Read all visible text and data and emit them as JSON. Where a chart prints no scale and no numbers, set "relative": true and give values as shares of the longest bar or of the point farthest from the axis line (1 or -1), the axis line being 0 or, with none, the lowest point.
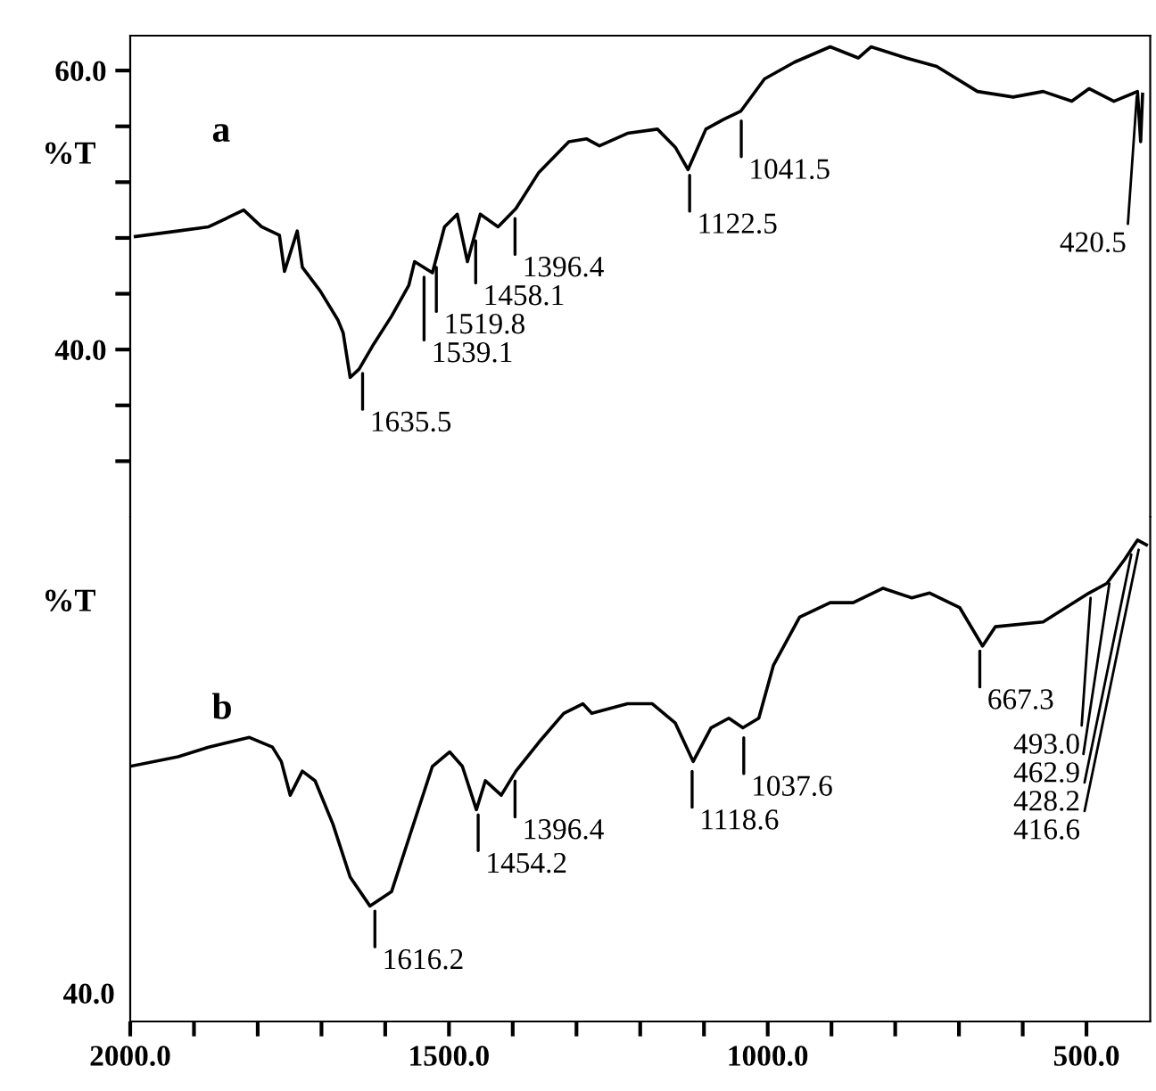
{
  "chart_data": [
    {
      "type": "line",
      "ylabel": "%T",
      "xlim": [
        2000,
        400
      ],
      "ylim": [
        28,
        62.5
      ],
      "yticks": [
        {
          "value": 60,
          "label": "60.0"
        },
        {
          "value": 56,
          "label": null
        },
        {
          "value": 52,
          "label": null
        },
        {
          "value": 48,
          "label": null
        },
        {
          "value": 44,
          "label": null
        },
        {
          "value": 40,
          "label": "40.0"
        },
        {
          "value": 36,
          "label": null
        },
        {
          "value": 32,
          "label": null
        }
      ],
      "tick_labels": "y",
      "series": [
        {
          "name": "a",
          "color": "#000000",
          "x": [
            1992,
            1925,
            1877,
            1822,
            1794,
            1766,
            1758,
            1738,
            1730,
            1702,
            1674,
            1666,
            1655,
            1641,
            1618,
            1590,
            1563,
            1554,
            1526,
            1507,
            1487,
            1471,
            1451,
            1423,
            1395,
            1359,
            1331,
            1312,
            1284,
            1264,
            1220,
            1173,
            1145,
            1125,
            1097,
            1069,
            1042,
            1005,
            958,
            902,
            858,
            838,
            783,
            735,
            671,
            615,
            568,
            523,
            496,
            457,
            420,
            415,
            412
          ],
          "values": [
            48.1,
            48.5,
            48.8,
            50.0,
            48.8,
            48.2,
            45.6,
            48.5,
            45.9,
            44.2,
            42.1,
            41.2,
            38.0,
            38.6,
            40.4,
            42.4,
            44.6,
            46.3,
            45.5,
            48.8,
            49.7,
            46.3,
            49.7,
            48.8,
            50.1,
            52.7,
            54.0,
            54.9,
            55.1,
            54.6,
            55.5,
            55.8,
            54.5,
            52.9,
            55.8,
            56.5,
            57.1,
            59.4,
            60.6,
            61.7,
            60.9,
            61.7,
            60.9,
            60.3,
            58.5,
            58.1,
            58.5,
            57.8,
            58.7,
            57.8,
            58.5,
            54.9,
            58.3
          ]
        }
      ],
      "annotations": [
        {
          "text": "1635.5",
          "x": 1635.5,
          "y": 39.0
        },
        {
          "text": "1539.1",
          "x": 1539.1,
          "y": 45.9
        },
        {
          "text": "1519.8",
          "x": 1519.8,
          "y": 46.6
        },
        {
          "text": "1458.1",
          "x": 1458.1,
          "y": 48.5
        },
        {
          "text": "1396.4",
          "x": 1396.4,
          "y": 50.1
        },
        {
          "text": "1122.5",
          "x": 1122.5,
          "y": 53.2
        },
        {
          "text": "1041.5",
          "x": 1041.5,
          "y": 57.1
        },
        {
          "text": "420.5",
          "x": 420.5,
          "y": 58.5
        }
      ]
    },
    {
      "type": "line",
      "ylabel": "%T",
      "relative": true,
      "xlim": [
        2000,
        400
      ],
      "xticks": [
        {
          "value": 2000,
          "label": "2000.0"
        },
        {
          "value": 1900,
          "label": null
        },
        {
          "value": 1800,
          "label": null
        },
        {
          "value": 1700,
          "label": null
        },
        {
          "value": 1600,
          "label": null
        },
        {
          "value": 1500,
          "label": "1500.0"
        },
        {
          "value": 1400,
          "label": null
        },
        {
          "value": 1300,
          "label": null
        },
        {
          "value": 1200,
          "label": null
        },
        {
          "value": 1100,
          "label": null
        },
        {
          "value": 1000,
          "label": "1000.0"
        },
        {
          "value": 900,
          "label": null
        },
        {
          "value": 800,
          "label": null
        },
        {
          "value": 700,
          "label": null
        },
        {
          "value": 600,
          "label": null
        },
        {
          "value": 500,
          "label": "500.0"
        }
      ],
      "series": [
        {
          "name": "b",
          "color": "#000000",
          "x": [
            2000,
            1925,
            1877,
            1813,
            1777,
            1763,
            1749,
            1730,
            1710,
            1682,
            1655,
            1624,
            1590,
            1563,
            1526,
            1499,
            1479,
            1457,
            1443,
            1418,
            1395,
            1359,
            1320,
            1290,
            1276,
            1220,
            1181,
            1145,
            1117,
            1089,
            1061,
            1039,
            1014,
            991,
            950,
            902,
            866,
            819,
            774,
            746,
            699,
            663,
            643,
            568,
            532,
            496,
            468,
            440,
            420,
            406
          ],
          "values": [
            0.53,
            0.55,
            0.57,
            0.59,
            0.57,
            0.54,
            0.47,
            0.52,
            0.5,
            0.41,
            0.3,
            0.24,
            0.27,
            0.38,
            0.53,
            0.56,
            0.53,
            0.44,
            0.5,
            0.47,
            0.52,
            0.58,
            0.64,
            0.66,
            0.64,
            0.66,
            0.66,
            0.62,
            0.54,
            0.61,
            0.63,
            0.61,
            0.63,
            0.74,
            0.84,
            0.87,
            0.87,
            0.9,
            0.88,
            0.89,
            0.86,
            0.78,
            0.82,
            0.83,
            0.86,
            0.89,
            0.91,
            0.96,
            1,
            0.99
          ]
        }
      ],
      "annotations": [
        "40.0",
        {
          "text": "1616.2",
          "x": 1616.2,
          "y": 0.25
        },
        {
          "text": "1454.2",
          "x": 1454.2,
          "y": 0.45
        },
        {
          "text": "1396.4",
          "x": 1396.4,
          "y": 0.52
        },
        {
          "text": "1118.6",
          "x": 1118.6,
          "y": 0.54
        },
        {
          "text": "1037.6",
          "x": 1037.6,
          "y": 0.61
        },
        {
          "text": "667.3",
          "x": 667.3,
          "y": 0.79
        },
        {
          "text": "493.0",
          "x": 493.0,
          "y": 0.89
        },
        {
          "text": "416.6",
          "x": 416.6,
          "y": 0.99
        },
        {
          "text": "428.2",
          "x": 428.2,
          "y": 0.98
        },
        {
          "text": "462.9",
          "x": 462.9,
          "y": 0.92
        }
      ]
    }
  ]
}
